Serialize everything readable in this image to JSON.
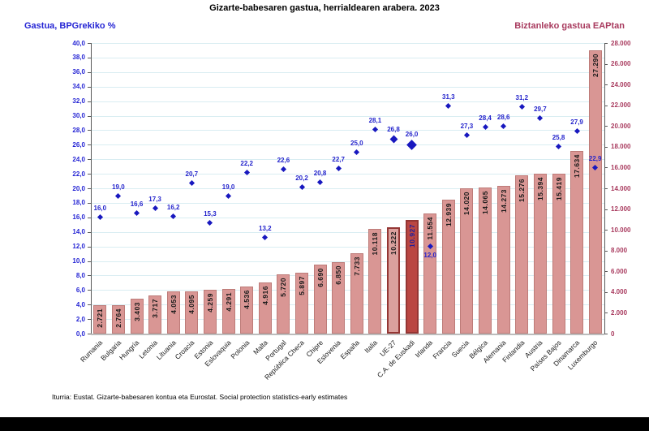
{
  "title": "Gizarte-babesaren gastua, herrialdearen arabera. 2023",
  "footer": "Iturria: Eustat. Gizarte-babesaren kontua eta Eurostat. Social protection statistics-early estimates",
  "left_axis": {
    "title": "Gastua, BPGrekiko %",
    "min": 0,
    "max": 40,
    "step": 2
  },
  "right_axis": {
    "title": "Biztanleko gastua EAPtan",
    "min": 0,
    "max": 28000,
    "step": 2000
  },
  "chart_data": {
    "type": "combo",
    "subtypes": [
      "bar",
      "scatter"
    ],
    "grid": true,
    "legend": "none",
    "categories": [
      "Rumania",
      "Bulgaria",
      "Hungría",
      "Letonia",
      "Lituania",
      "Croacia",
      "Estonia",
      "Eslovaquia",
      "Polonia",
      "Malta",
      "Portugal",
      "República Checa",
      "Chipre",
      "Eslovenia",
      "España",
      "Italia",
      "UE-27",
      "C.A. de Euskadi",
      "Irlanda",
      "Francia",
      "Suecia",
      "Bélgica",
      "Alemania",
      "Finlandia",
      "Austria",
      "Países Bajos",
      "Dinamarca",
      "Luxemburgo"
    ],
    "series": [
      {
        "name": "Biztanleko gastua EAPtan",
        "type": "bar",
        "axis": "right",
        "ylim": [
          0,
          28000
        ],
        "values": [
          2721,
          2764,
          3403,
          3717,
          4053,
          4095,
          4259,
          4291,
          4536,
          4916,
          5720,
          5897,
          6690,
          6850,
          7733,
          10118,
          10222,
          10927,
          11554,
          12939,
          14020,
          14065,
          14273,
          15276,
          15394,
          15419,
          17634,
          27290
        ],
        "labels": [
          "2.721",
          "2.764",
          "3.403",
          "3.717",
          "4.053",
          "4.095",
          "4.259",
          "4.291",
          "4.536",
          "4.916",
          "5.720",
          "5.897",
          "6.690",
          "6.850",
          "7.733",
          "10.118",
          "10.222",
          "10.927",
          "11.554",
          "12.939",
          "14.020",
          "14.065",
          "14.273",
          "15.276",
          "15.394",
          "15.419",
          "17.634",
          "27.290"
        ]
      },
      {
        "name": "Gastua, BPGrekiko %",
        "type": "scatter",
        "axis": "left",
        "ylim": [
          0,
          40
        ],
        "values": [
          16.0,
          19.0,
          16.6,
          17.3,
          16.2,
          20.7,
          15.3,
          19.0,
          22.2,
          13.2,
          22.6,
          20.2,
          20.8,
          22.7,
          25.0,
          28.1,
          26.8,
          26.0,
          12.0,
          31.3,
          27.3,
          28.4,
          28.6,
          31.2,
          29.7,
          25.8,
          27.9,
          22.9
        ],
        "labels": [
          "16,0",
          "19,0",
          "16,6",
          "17,3",
          "16,2",
          "20,7",
          "15,3",
          "19,0",
          "22,2",
          "13,2",
          "22,6",
          "20,2",
          "20,8",
          "22,7",
          "25,0",
          "28,1",
          "26,8",
          "26,0",
          "12,0",
          "31,3",
          "27,3",
          "28,4",
          "28,6",
          "31,2",
          "29,7",
          "25,8",
          "27,9",
          "22,9"
        ]
      }
    ],
    "highlights": {
      "ue27_category": "UE-27",
      "euskadi_category": "C.A. de Euskadi",
      "marker_label_below_category": "Irlanda"
    }
  },
  "colors": {
    "bar_fill": "#d99694",
    "bar_border": "#bd7b78",
    "ue27_fill": "#dba19e",
    "highlight_border": "#943634",
    "euskadi_fill": "#ba4642",
    "euskadi_value_text": "#1f1f9e",
    "bar_value_text": "#1a1a1a",
    "marker": "#1818bf",
    "marker_label": "#2424cc",
    "left_axis": "#2525d4",
    "right_axis": "#a83a5e",
    "gridline": "#d9edf2"
  }
}
